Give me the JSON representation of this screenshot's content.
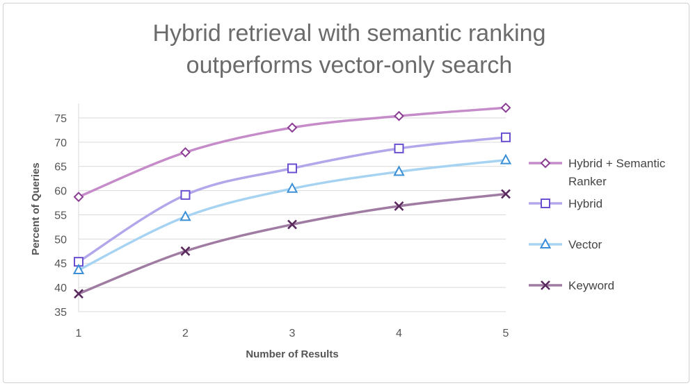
{
  "chart_data": {
    "type": "line",
    "title_lines": [
      "Hybrid retrieval with semantic ranking",
      "outperforms vector-only search"
    ],
    "xlabel": "Number of Results",
    "ylabel": "Percent of Queries",
    "x": [
      1,
      2,
      3,
      4,
      5
    ],
    "xlim": [
      1,
      5
    ],
    "ylim": [
      35,
      78
    ],
    "yticks": [
      35,
      40,
      45,
      50,
      55,
      60,
      65,
      70,
      75
    ],
    "grid": "horizontal",
    "legend_position": "right",
    "series": [
      {
        "name": "Hybrid + Semantic Ranker",
        "name_lines": [
          "Hybrid + Semantic",
          "Ranker"
        ],
        "values": [
          58.7,
          67.9,
          73.0,
          75.4,
          77.1
        ],
        "color": "#c58cc9",
        "marker_color": "#8b3d93",
        "marker": "diamond"
      },
      {
        "name": "Hybrid",
        "name_lines": [
          "Hybrid"
        ],
        "values": [
          45.3,
          59.1,
          64.6,
          68.7,
          71.0
        ],
        "color": "#b3a6ea",
        "marker_color": "#6a4fd0",
        "marker": "square"
      },
      {
        "name": "Vector",
        "name_lines": [
          "Vector"
        ],
        "values": [
          43.6,
          54.6,
          60.4,
          63.9,
          66.3
        ],
        "color": "#a7d3f2",
        "marker_color": "#3a8fd6",
        "marker": "triangle"
      },
      {
        "name": "Keyword",
        "name_lines": [
          "Keyword"
        ],
        "values": [
          38.7,
          47.5,
          53.0,
          56.8,
          59.3
        ],
        "color": "#a07ca3",
        "marker_color": "#5a2a5e",
        "marker": "x"
      }
    ]
  }
}
